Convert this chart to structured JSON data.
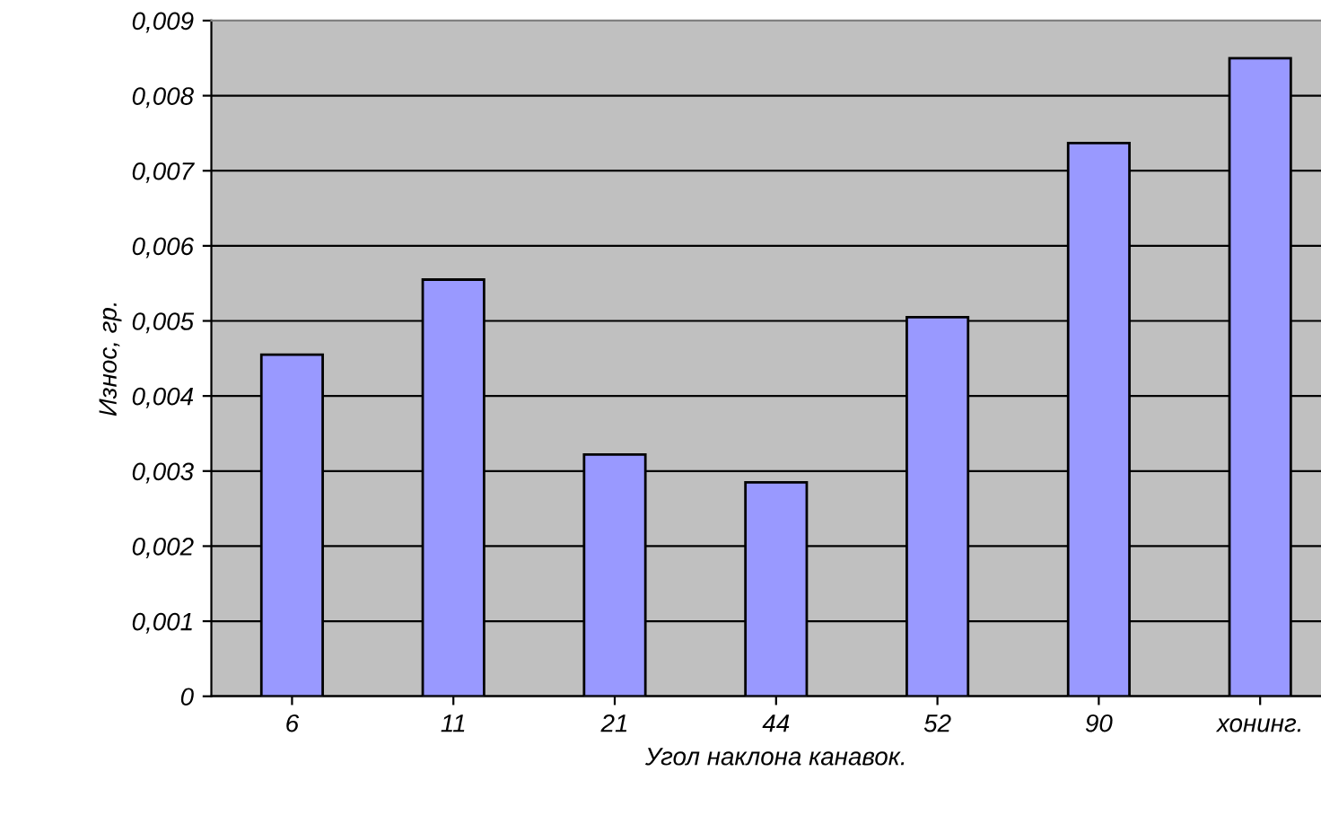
{
  "chart_data": {
    "type": "bar",
    "xlabel": "Угол наклона канавок.",
    "ylabel": "Износ, гр.",
    "categories": [
      "6",
      "11",
      "21",
      "44",
      "52",
      "90",
      "хонинг."
    ],
    "values": [
      0.00455,
      0.00555,
      0.00322,
      0.00285,
      0.00505,
      0.00737,
      0.0085
    ],
    "color": "#9999ff",
    "ylim": [
      0,
      0.009
    ],
    "yticks": [
      0,
      {
        "value": 0.001,
        "label": "0,001"
      },
      {
        "value": 0.002,
        "label": "0,002"
      },
      {
        "value": 0.003,
        "label": "0,003"
      },
      {
        "value": 0.004,
        "label": "0,004"
      },
      {
        "value": 0.005,
        "label": "0,005"
      },
      {
        "value": 0.006,
        "label": "0,006"
      },
      {
        "value": 0.007,
        "label": "0,007"
      },
      {
        "value": 0.008,
        "label": "0,008"
      },
      {
        "value": 0.009,
        "label": "0,009"
      }
    ],
    "grid": "y"
  }
}
